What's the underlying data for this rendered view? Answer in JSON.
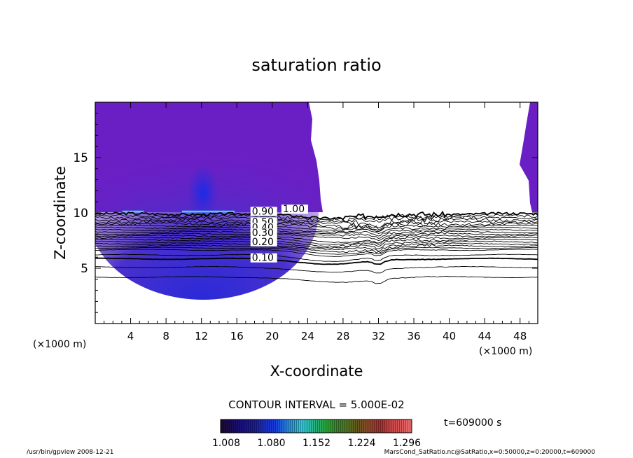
{
  "chart_data": {
    "type": "contour",
    "title": "saturation ratio",
    "xlabel": "X-coordinate",
    "ylabel": "Z-coordinate",
    "x_unit": "(×1000 m)",
    "xlim": [
      0,
      50
    ],
    "ylim": [
      0,
      20
    ],
    "xticks": [
      4,
      8,
      12,
      16,
      20,
      24,
      28,
      32,
      36,
      40,
      44,
      48
    ],
    "yticks": [
      5,
      10,
      15
    ],
    "contour_interval_text": "CONTOUR INTERVAL = 5.000E-02",
    "contour_labels": [
      {
        "text": "0.90",
        "x": 17.7,
        "z": 9.85
      },
      {
        "text": "1.00",
        "x": 21.2,
        "z": 10.05
      },
      {
        "text": "0.50",
        "x": 17.7,
        "z": 8.9
      },
      {
        "text": "0.40",
        "x": 17.7,
        "z": 8.4
      },
      {
        "text": "0.30",
        "x": 17.7,
        "z": 7.9
      },
      {
        "text": "0.20",
        "x": 17.7,
        "z": 7.1
      },
      {
        "text": "0.10",
        "x": 17.7,
        "z": 5.65
      }
    ],
    "colorbar": {
      "tick_labels": [
        "1.008",
        "1.080",
        "1.152",
        "1.224",
        "1.296"
      ],
      "range": [
        1.008,
        1.296
      ]
    },
    "time_label": "t=609000 s"
  },
  "footer": {
    "left": "/usr/bin/gpview   2008-12-21",
    "right": "MarsCond_SatRatio.nc@SatRatio,x=0:50000,z=0:20000,t=609000"
  }
}
